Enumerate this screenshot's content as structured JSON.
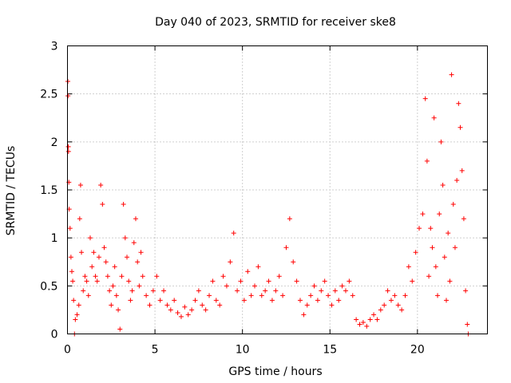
{
  "chart_data": {
    "type": "scatter",
    "title": "Day 040 of 2023, SRMTID for receiver ske8",
    "xlabel": "GPS time / hours",
    "ylabel": "SRMTID / TECUs",
    "xlim": [
      0,
      24
    ],
    "ylim": [
      0,
      3
    ],
    "xticks": [
      0,
      5,
      10,
      15,
      20
    ],
    "xtick_labels": [
      "0",
      "5",
      "10",
      "15",
      "20"
    ],
    "yticks": [
      0,
      0.5,
      1,
      1.5,
      2,
      2.5,
      3
    ],
    "ytick_labels": [
      "0",
      "0.5",
      "1",
      "1.5",
      "2",
      "2.5",
      "3"
    ],
    "grid": true,
    "marker": "+",
    "color": "#ff0000",
    "series": [
      {
        "name": "SRMTID",
        "points": [
          [
            0.02,
            2.63
          ],
          [
            0.03,
            2.48
          ],
          [
            0.05,
            1.95
          ],
          [
            0.06,
            1.9
          ],
          [
            0.08,
            1.58
          ],
          [
            0.1,
            1.3
          ],
          [
            0.15,
            1.1
          ],
          [
            0.2,
            0.8
          ],
          [
            0.25,
            0.65
          ],
          [
            0.3,
            0.55
          ],
          [
            0.35,
            0.35
          ],
          [
            0.4,
            0.0
          ],
          [
            0.45,
            0.15
          ],
          [
            0.55,
            0.2
          ],
          [
            0.65,
            0.3
          ],
          [
            0.7,
            1.2
          ],
          [
            0.75,
            1.55
          ],
          [
            0.8,
            0.85
          ],
          [
            0.9,
            0.45
          ],
          [
            1.0,
            0.6
          ],
          [
            1.1,
            0.55
          ],
          [
            1.2,
            0.4
          ],
          [
            1.3,
            1.0
          ],
          [
            1.4,
            0.7
          ],
          [
            1.5,
            0.85
          ],
          [
            1.6,
            0.6
          ],
          [
            1.7,
            0.55
          ],
          [
            1.8,
            0.8
          ],
          [
            1.9,
            1.55
          ],
          [
            2.0,
            1.35
          ],
          [
            2.1,
            0.9
          ],
          [
            2.2,
            0.75
          ],
          [
            2.3,
            0.6
          ],
          [
            2.4,
            0.45
          ],
          [
            2.5,
            0.3
          ],
          [
            2.6,
            0.5
          ],
          [
            2.7,
            0.7
          ],
          [
            2.8,
            0.4
          ],
          [
            2.9,
            0.25
          ],
          [
            3.0,
            0.05
          ],
          [
            3.1,
            0.6
          ],
          [
            3.2,
            1.35
          ],
          [
            3.3,
            1.0
          ],
          [
            3.4,
            0.8
          ],
          [
            3.5,
            0.55
          ],
          [
            3.6,
            0.35
          ],
          [
            3.7,
            0.45
          ],
          [
            3.8,
            0.95
          ],
          [
            3.9,
            1.2
          ],
          [
            4.0,
            0.75
          ],
          [
            4.1,
            0.5
          ],
          [
            4.2,
            0.85
          ],
          [
            4.3,
            0.6
          ],
          [
            4.5,
            0.4
          ],
          [
            4.7,
            0.3
          ],
          [
            4.9,
            0.45
          ],
          [
            5.1,
            0.6
          ],
          [
            5.3,
            0.35
          ],
          [
            5.5,
            0.45
          ],
          [
            5.7,
            0.3
          ],
          [
            5.9,
            0.25
          ],
          [
            6.1,
            0.35
          ],
          [
            6.3,
            0.22
          ],
          [
            6.5,
            0.18
          ],
          [
            6.7,
            0.28
          ],
          [
            6.9,
            0.2
          ],
          [
            7.1,
            0.25
          ],
          [
            7.3,
            0.35
          ],
          [
            7.5,
            0.45
          ],
          [
            7.7,
            0.3
          ],
          [
            7.9,
            0.25
          ],
          [
            8.1,
            0.4
          ],
          [
            8.3,
            0.55
          ],
          [
            8.5,
            0.35
          ],
          [
            8.7,
            0.3
          ],
          [
            8.9,
            0.6
          ],
          [
            9.1,
            0.5
          ],
          [
            9.3,
            0.75
          ],
          [
            9.5,
            1.05
          ],
          [
            9.7,
            0.45
          ],
          [
            9.9,
            0.55
          ],
          [
            10.1,
            0.35
          ],
          [
            10.3,
            0.65
          ],
          [
            10.5,
            0.4
          ],
          [
            10.7,
            0.5
          ],
          [
            10.9,
            0.7
          ],
          [
            11.1,
            0.4
          ],
          [
            11.3,
            0.45
          ],
          [
            11.5,
            0.55
          ],
          [
            11.7,
            0.35
          ],
          [
            11.9,
            0.45
          ],
          [
            12.1,
            0.6
          ],
          [
            12.3,
            0.4
          ],
          [
            12.5,
            0.9
          ],
          [
            12.7,
            1.2
          ],
          [
            12.9,
            0.75
          ],
          [
            13.1,
            0.55
          ],
          [
            13.3,
            0.35
          ],
          [
            13.5,
            0.2
          ],
          [
            13.7,
            0.3
          ],
          [
            13.9,
            0.4
          ],
          [
            14.1,
            0.5
          ],
          [
            14.3,
            0.35
          ],
          [
            14.5,
            0.45
          ],
          [
            14.7,
            0.55
          ],
          [
            14.9,
            0.4
          ],
          [
            15.1,
            0.3
          ],
          [
            15.3,
            0.45
          ],
          [
            15.5,
            0.35
          ],
          [
            15.7,
            0.5
          ],
          [
            15.9,
            0.45
          ],
          [
            16.1,
            0.55
          ],
          [
            16.3,
            0.4
          ],
          [
            16.5,
            0.15
          ],
          [
            16.7,
            0.1
          ],
          [
            16.9,
            0.12
          ],
          [
            17.1,
            0.08
          ],
          [
            17.3,
            0.15
          ],
          [
            17.5,
            0.2
          ],
          [
            17.7,
            0.15
          ],
          [
            17.9,
            0.25
          ],
          [
            18.1,
            0.3
          ],
          [
            18.3,
            0.45
          ],
          [
            18.5,
            0.35
          ],
          [
            18.7,
            0.4
          ],
          [
            18.9,
            0.3
          ],
          [
            19.1,
            0.25
          ],
          [
            19.3,
            0.4
          ],
          [
            19.5,
            0.7
          ],
          [
            19.7,
            0.55
          ],
          [
            19.9,
            0.85
          ],
          [
            20.1,
            1.1
          ],
          [
            20.3,
            1.25
          ],
          [
            20.45,
            2.45
          ],
          [
            20.55,
            1.8
          ],
          [
            20.65,
            0.6
          ],
          [
            20.75,
            1.1
          ],
          [
            20.85,
            0.9
          ],
          [
            20.95,
            2.25
          ],
          [
            21.05,
            0.7
          ],
          [
            21.15,
            0.4
          ],
          [
            21.25,
            1.25
          ],
          [
            21.35,
            2.0
          ],
          [
            21.45,
            1.55
          ],
          [
            21.55,
            0.8
          ],
          [
            21.65,
            0.35
          ],
          [
            21.75,
            1.05
          ],
          [
            21.85,
            0.55
          ],
          [
            21.95,
            2.7
          ],
          [
            22.05,
            1.35
          ],
          [
            22.15,
            0.9
          ],
          [
            22.25,
            1.6
          ],
          [
            22.35,
            2.4
          ],
          [
            22.45,
            2.15
          ],
          [
            22.55,
            1.7
          ],
          [
            22.65,
            1.2
          ],
          [
            22.75,
            0.45
          ],
          [
            22.85,
            0.1
          ],
          [
            22.9,
            0.0
          ]
        ]
      }
    ]
  }
}
